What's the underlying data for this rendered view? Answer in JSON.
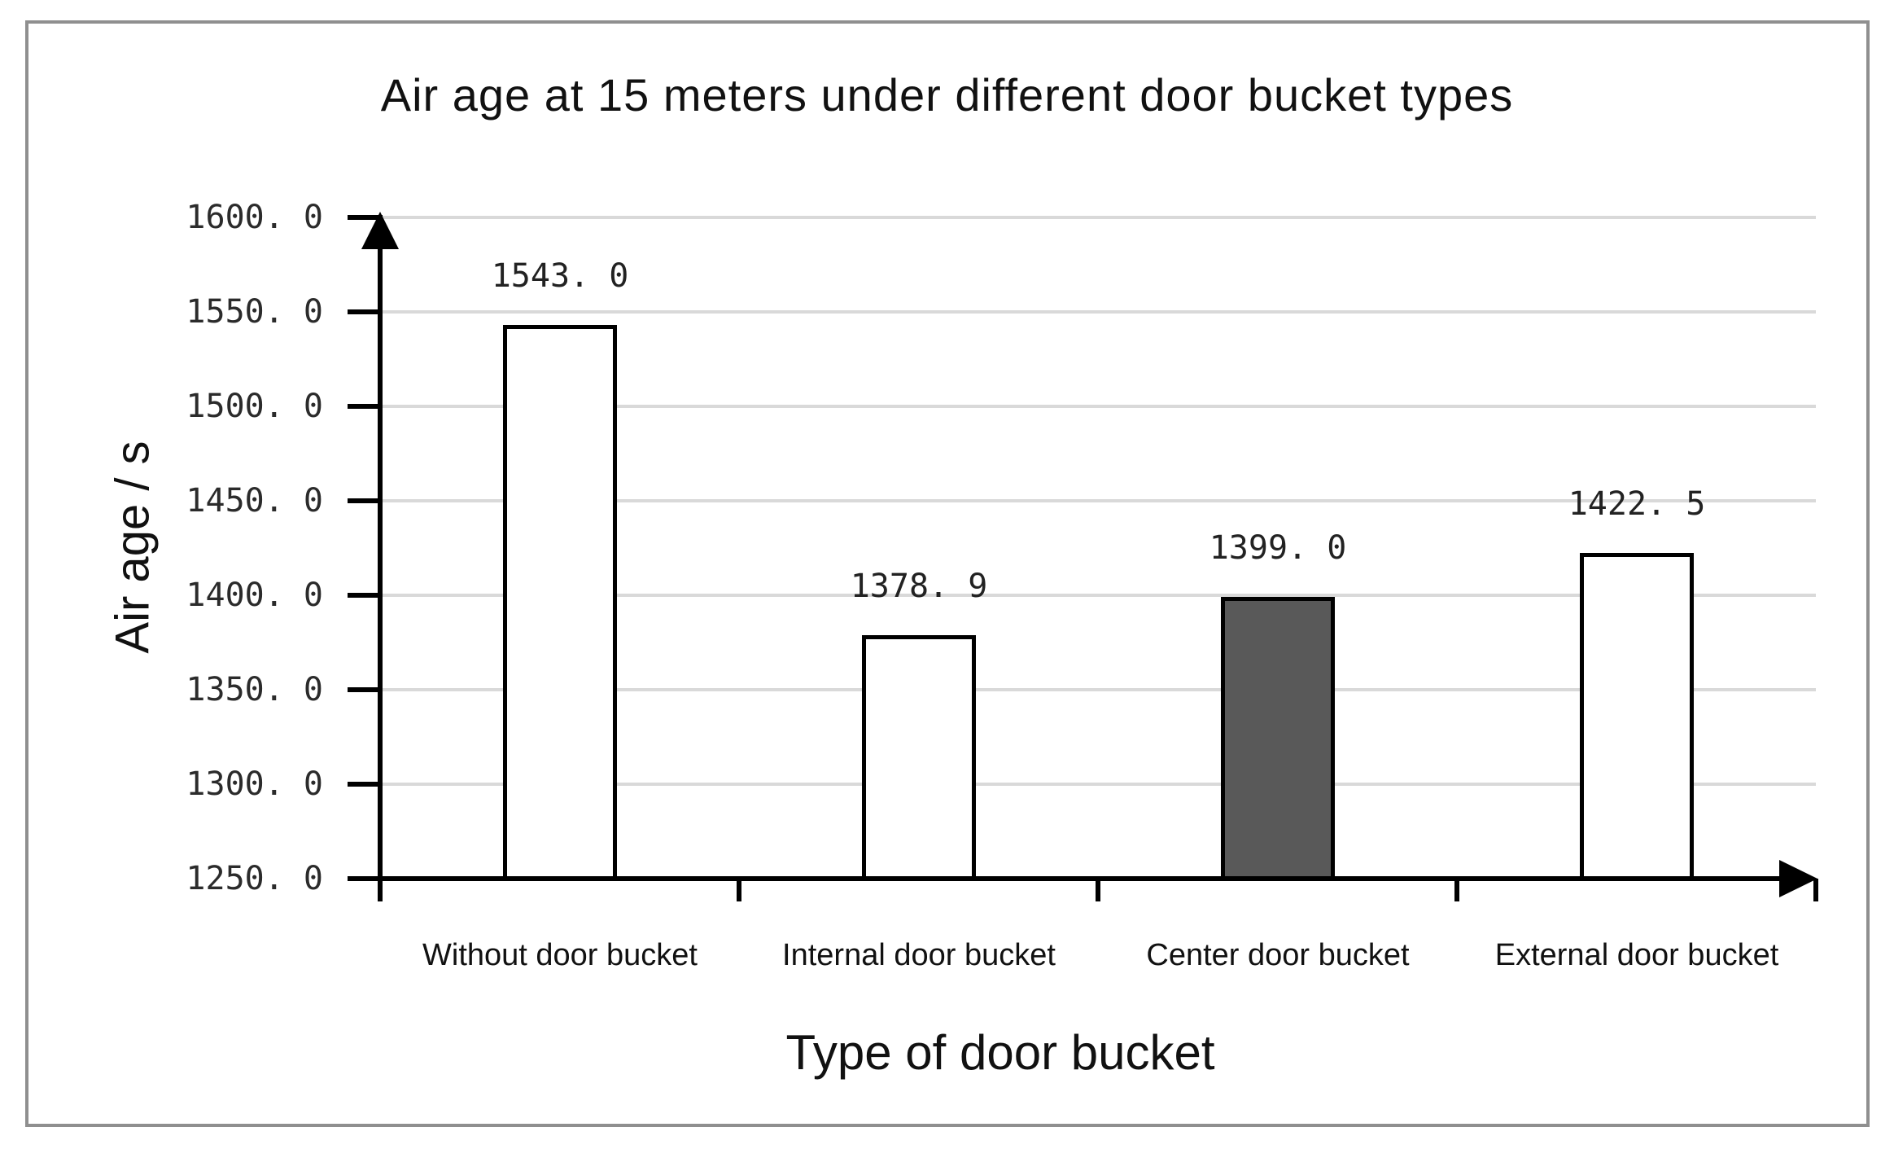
{
  "title": "Air age at 15 meters under different door bucket types",
  "chart_data": {
    "type": "bar",
    "title": "Air age at 15 meters under different door bucket types",
    "xlabel": "Type of door bucket",
    "ylabel": "Air age / s",
    "categories": [
      "Without door bucket",
      "Internal door bucket",
      "Center door bucket",
      "External door bucket"
    ],
    "values": [
      1543.0,
      1378.9,
      1399.0,
      1422.5
    ],
    "value_labels": [
      "1543. 0",
      "1378. 9",
      "1399. 0",
      "1422. 5"
    ],
    "ylim": [
      1250,
      1600
    ],
    "ytick_step": 50,
    "ytick_labels": [
      "1250. 0",
      "1300. 0",
      "1350. 0",
      "1400. 0",
      "1450. 0",
      "1500. 0",
      "1550. 0",
      "1600. 0"
    ],
    "grid": true,
    "legend": false,
    "colors": {
      "bar_fills": [
        "#ffffff",
        "#ffffff",
        "#595959",
        "#ffffff"
      ],
      "bar_border": "#000000",
      "gridline": "#d9d9d9",
      "axis": "#000000",
      "frame_border": "#8f8f8f",
      "text": "#111111"
    }
  }
}
